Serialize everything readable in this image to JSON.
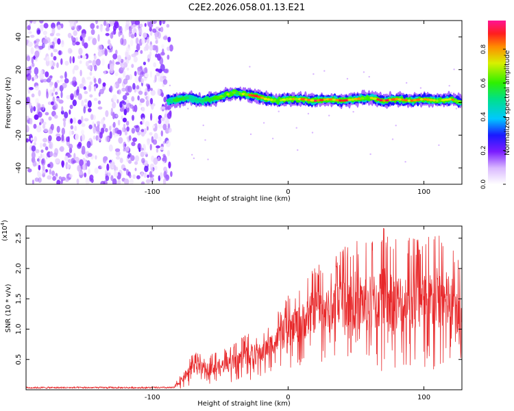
{
  "title": "C2E2.2026.058.01.13.E21",
  "chart_data": [
    {
      "type": "heatmap",
      "xlabel": "Height of straight line (km)",
      "ylabel": "Frequency (Hz)",
      "xlim": [
        -193,
        128
      ],
      "ylim": [
        -50,
        50
      ],
      "xticks": [
        -100,
        0,
        100
      ],
      "yticks": [
        40,
        20,
        0,
        -20,
        -40
      ],
      "colorbar": {
        "label": "Normalized spectral amplitude",
        "range": [
          0.0,
          0.97
        ],
        "ticks": [
          0.0,
          0.2,
          0.4,
          0.6,
          0.8
        ],
        "tick_labels": [
          "0.0",
          "0.2",
          "0.4",
          "0.6",
          "0.8"
        ]
      },
      "noise_region": {
        "x_from": -193,
        "x_to": -88,
        "freq_from": -50,
        "freq_to": 50,
        "amplitude_max": 0.2
      },
      "signal_trace": {
        "x": [
          -88,
          -80,
          -72,
          -64,
          -56,
          -48,
          -40,
          -32,
          -24,
          -16,
          -8,
          0,
          10,
          20,
          30,
          40,
          50,
          60,
          70,
          80,
          90,
          100,
          110,
          120,
          128
        ],
        "freq": [
          1,
          2,
          3,
          1,
          2,
          4,
          6,
          5,
          4,
          2,
          1,
          2,
          2,
          1,
          2,
          1,
          2,
          3,
          1,
          2,
          1,
          2,
          1,
          2,
          0
        ],
        "amplitude": [
          0.5,
          0.6,
          0.5,
          0.5,
          0.6,
          0.7,
          0.6,
          0.7,
          0.9,
          0.8,
          0.7,
          0.8,
          0.8,
          0.9,
          0.8,
          0.9,
          0.8,
          0.7,
          0.9,
          0.8,
          0.8,
          0.8,
          0.7,
          0.8,
          0.7
        ]
      }
    },
    {
      "type": "line",
      "xlabel": "Height of straight line (km)",
      "ylabel": "SNR (10 * v/v)",
      "y_multiplier": "(x10",
      "y_multiplier_exp": "4",
      "y_multiplier_close": ")",
      "xlim": [
        -193,
        128
      ],
      "ylim": [
        0,
        2.7
      ],
      "xticks": [
        -100,
        0,
        100
      ],
      "yticks": [
        0.5,
        1.0,
        1.5,
        2.0,
        2.5
      ],
      "ytick_labels": [
        "0.5",
        "1.0",
        "1.5",
        "2.0",
        "2.5"
      ],
      "series": [
        {
          "name": "SNR",
          "color": "#e8282a",
          "envelope": {
            "x": [
              -193,
              -85,
              -80,
              -70,
              -60,
              -50,
              -40,
              -30,
              -20,
              -10,
              0,
              10,
              20,
              30,
              40,
              50,
              60,
              70,
              80,
              90,
              100,
              110,
              120,
              128
            ],
            "high": [
              0.04,
              0.05,
              0.22,
              0.65,
              0.55,
              0.65,
              0.75,
              0.95,
              0.95,
              1.2,
              1.55,
              1.75,
              2.1,
              2.05,
              2.4,
              2.5,
              2.4,
              2.7,
              2.5,
              2.55,
              2.5,
              2.6,
              2.45,
              2.0
            ],
            "low": [
              0.0,
              0.0,
              0.02,
              0.08,
              0.1,
              0.1,
              0.12,
              0.15,
              0.2,
              0.35,
              0.35,
              0.4,
              0.45,
              0.45,
              0.45,
              0.35,
              0.3,
              0.25,
              0.2,
              0.25,
              0.25,
              0.3,
              0.35,
              0.3
            ]
          }
        }
      ]
    }
  ]
}
